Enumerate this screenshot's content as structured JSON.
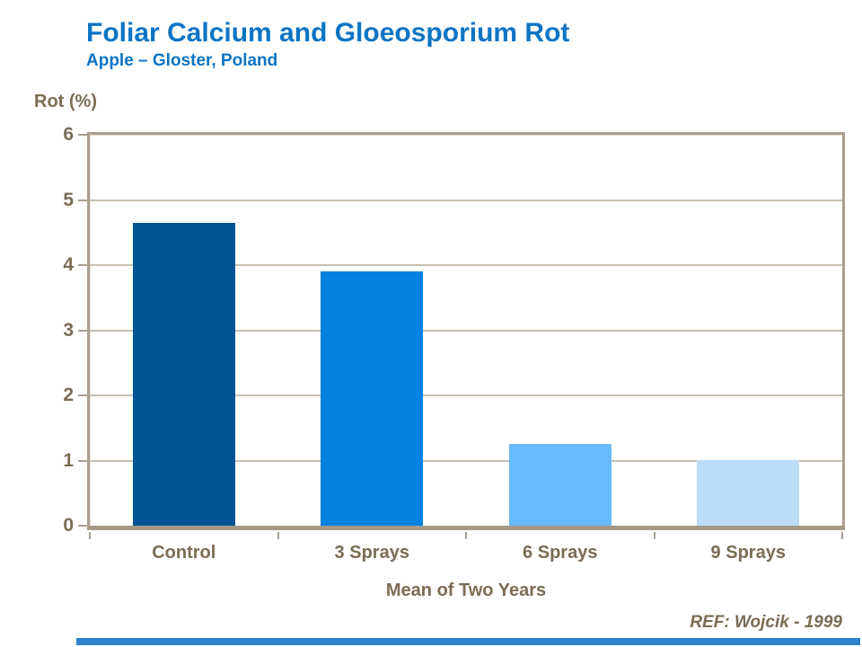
{
  "header": {
    "title": "Foliar Calcium and Gloeosporium Rot",
    "subtitle": "Apple – Gloster, Poland"
  },
  "chart_data": {
    "type": "bar",
    "categories": [
      "Control",
      "3 Sprays",
      "6 Sprays",
      "9 Sprays"
    ],
    "values": [
      4.65,
      3.9,
      1.25,
      1.0
    ],
    "bar_colors": [
      "#005695",
      "#0382E2",
      "#68BAFB",
      "#BBDDFA"
    ],
    "title": "Foliar Calcium and Gloeosporium Rot",
    "subtitle": "Apple – Gloster, Poland",
    "xlabel": "Mean of Two Years",
    "ylabel": "Rot (%)",
    "ylim": [
      0,
      6
    ],
    "yticks": [
      0,
      1,
      2,
      3,
      4,
      5,
      6
    ],
    "grid": "horizontal gridlines at each integer",
    "legend": "none"
  },
  "footnote": {
    "ref": "REF: Wojcik - 1999"
  },
  "colors": {
    "title_blue": "#0C74C4",
    "axis_text_taupe": "#7B6C55",
    "frame_taupe": "#AB9E90",
    "gridline_taupe": "#C8BFB2",
    "footer_accent_blue": "#2E82CF"
  }
}
